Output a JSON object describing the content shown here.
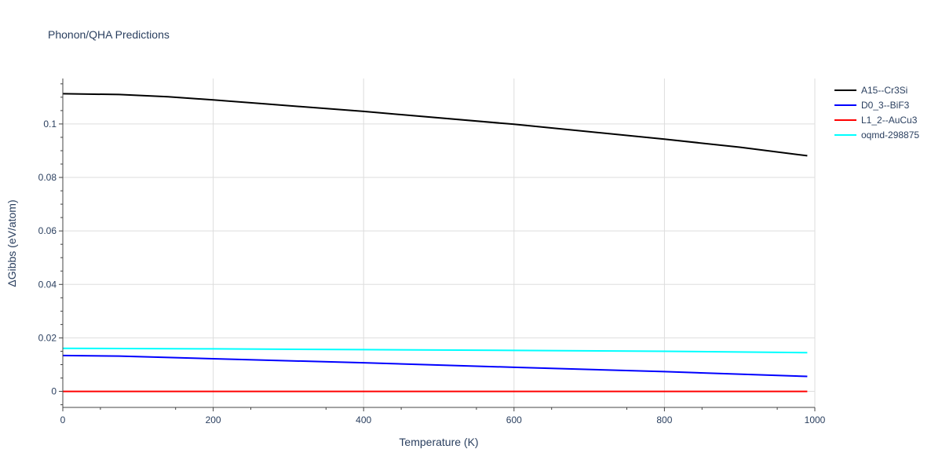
{
  "chart_data": {
    "type": "line",
    "title": "Phonon/QHA Predictions",
    "xlabel": "Temperature (K)",
    "ylabel": "ΔGibbs (eV/atom)",
    "xlim": [
      0,
      1000
    ],
    "ylim": [
      -0.006,
      0.117
    ],
    "xticks": [
      0,
      200,
      400,
      600,
      800,
      1000
    ],
    "xtick_labels": [
      "0",
      "200",
      "400",
      "600",
      "800",
      "1000"
    ],
    "yticks": [
      0,
      0.02,
      0.04,
      0.06,
      0.08,
      0.1
    ],
    "ytick_labels": [
      "0",
      "0.02",
      "0.04",
      "0.06",
      "0.08",
      "0.1"
    ],
    "grid": true,
    "legend_position": "top-right-outside",
    "series": [
      {
        "name": "A15--Cr3Si",
        "color": "#000000",
        "x": [
          0,
          75,
          140,
          200,
          270,
          400,
          600,
          800,
          900,
          990
        ],
        "y": [
          0.1113,
          0.111,
          0.1102,
          0.109,
          0.1075,
          0.1047,
          0.0999,
          0.0943,
          0.0913,
          0.0881
        ]
      },
      {
        "name": "D0_3--BiF3",
        "color": "#0000ff",
        "x": [
          0,
          75,
          200,
          400,
          600,
          800,
          990
        ],
        "y": [
          0.0134,
          0.0132,
          0.0122,
          0.0107,
          0.009,
          0.0074,
          0.0056
        ]
      },
      {
        "name": "L1_2--AuCu3",
        "color": "#ff0000",
        "x": [
          0,
          990
        ],
        "y": [
          0.0,
          0.0
        ]
      },
      {
        "name": "oqmd-298875",
        "color": "#00ffff",
        "x": [
          0,
          200,
          400,
          600,
          800,
          990
        ],
        "y": [
          0.0161,
          0.0159,
          0.0156,
          0.0153,
          0.015,
          0.0145
        ]
      }
    ]
  }
}
